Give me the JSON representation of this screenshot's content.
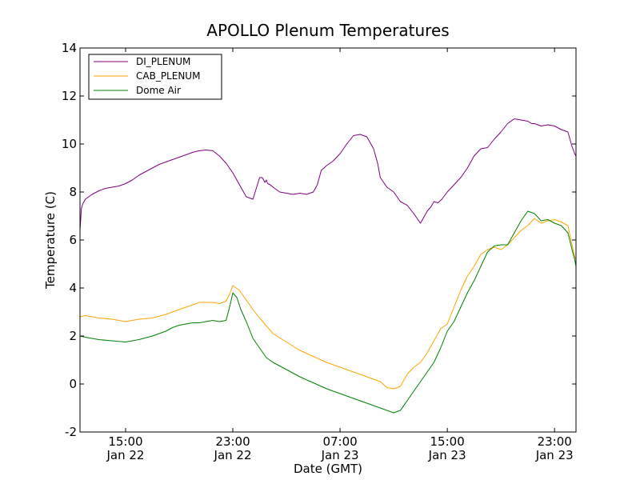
{
  "chart_data": {
    "type": "line",
    "title": "APOLLO Plenum Temperatures",
    "xlabel": "Date (GMT)",
    "ylabel": "Temperature (C)",
    "xlim": [
      11.6,
      48.6
    ],
    "ylim": [
      -2,
      14
    ],
    "grid": false,
    "legend_position": "top-left",
    "x_unit": "hours since 00:00 Jan 22 (GMT)",
    "yticks": [
      {
        "value": -2,
        "label": "-2"
      },
      {
        "value": 0,
        "label": "0"
      },
      {
        "value": 2,
        "label": "2"
      },
      {
        "value": 4,
        "label": "4"
      },
      {
        "value": 6,
        "label": "6"
      },
      {
        "value": 8,
        "label": "8"
      },
      {
        "value": 10,
        "label": "10"
      },
      {
        "value": 12,
        "label": "12"
      },
      {
        "value": 14,
        "label": "14"
      }
    ],
    "xticks": [
      {
        "value": 15,
        "time": "15:00",
        "date": "Jan 22"
      },
      {
        "value": 23,
        "time": "23:00",
        "date": "Jan 22"
      },
      {
        "value": 31,
        "time": "07:00",
        "date": "Jan 23"
      },
      {
        "value": 39,
        "time": "15:00",
        "date": "Jan 23"
      },
      {
        "value": 47,
        "time": "23:00",
        "date": "Jan 23"
      }
    ],
    "series": [
      {
        "name": "DI_PLENUM",
        "color": "#800080",
        "x": [
          11.6,
          11.7,
          11.8,
          12.0,
          12.5,
          13.0,
          13.5,
          14.0,
          14.5,
          15.0,
          15.5,
          16.0,
          16.5,
          17.0,
          17.5,
          18.0,
          18.5,
          19.0,
          19.5,
          20.0,
          20.5,
          21.0,
          21.5,
          22.0,
          22.5,
          23.0,
          23.5,
          24.0,
          24.5,
          25.0,
          25.2,
          25.4,
          25.5,
          25.6,
          25.8,
          26.0,
          26.5,
          27.0,
          27.5,
          28.0,
          28.5,
          29.0,
          29.3,
          29.6,
          30.0,
          30.5,
          31.0,
          31.5,
          32.0,
          32.5,
          33.0,
          33.5,
          33.8,
          34.0,
          34.5,
          35.0,
          35.5,
          36.0,
          36.5,
          37.0,
          37.3,
          37.5,
          37.8,
          38.0,
          38.3,
          38.6,
          39.0,
          39.5,
          40.0,
          40.5,
          41.0,
          41.5,
          42.0,
          42.5,
          43.0,
          43.5,
          44.0,
          44.5,
          45.0,
          45.3,
          45.5,
          46.0,
          46.5,
          47.0,
          47.5,
          48.0,
          48.3,
          48.5,
          48.6
        ],
        "y": [
          6.4,
          7.3,
          7.5,
          7.7,
          7.9,
          8.05,
          8.15,
          8.2,
          8.25,
          8.35,
          8.5,
          8.7,
          8.85,
          9.0,
          9.15,
          9.25,
          9.35,
          9.45,
          9.55,
          9.65,
          9.72,
          9.75,
          9.72,
          9.5,
          9.2,
          8.8,
          8.3,
          7.8,
          7.7,
          8.6,
          8.6,
          8.4,
          8.5,
          8.35,
          8.3,
          8.2,
          8.0,
          7.95,
          7.9,
          7.95,
          7.9,
          8.0,
          8.3,
          8.9,
          9.1,
          9.3,
          9.6,
          10.0,
          10.35,
          10.4,
          10.3,
          9.8,
          9.2,
          8.6,
          8.2,
          8.0,
          7.6,
          7.45,
          7.1,
          6.7,
          7.0,
          7.2,
          7.4,
          7.6,
          7.55,
          7.7,
          8.0,
          8.3,
          8.6,
          9.0,
          9.5,
          9.8,
          9.85,
          10.2,
          10.5,
          10.85,
          11.05,
          11.0,
          10.95,
          10.85,
          10.85,
          10.75,
          10.8,
          10.75,
          10.6,
          10.5,
          9.9,
          9.6,
          9.5
        ]
      },
      {
        "name": "CAB_PLENUM",
        "color": "#ffa500",
        "x": [
          11.6,
          12.0,
          12.5,
          13.0,
          14.0,
          15.0,
          16.0,
          17.0,
          18.0,
          18.5,
          19.0,
          19.5,
          20.0,
          20.5,
          21.0,
          21.5,
          22.0,
          22.5,
          22.8,
          23.0,
          23.5,
          24.0,
          24.5,
          25.0,
          26.0,
          27.0,
          28.0,
          29.0,
          30.0,
          31.0,
          32.0,
          33.0,
          34.0,
          34.3,
          34.5,
          35.0,
          35.5,
          36.0,
          36.5,
          37.0,
          37.5,
          38.0,
          38.5,
          39.0,
          39.5,
          40.0,
          40.5,
          41.0,
          41.5,
          42.0,
          42.5,
          43.0,
          43.5,
          44.0,
          44.5,
          45.0,
          45.5,
          46.0,
          46.5,
          47.0,
          47.5,
          48.0,
          48.3,
          48.5,
          48.6
        ],
        "y": [
          2.8,
          2.85,
          2.8,
          2.75,
          2.7,
          2.6,
          2.7,
          2.75,
          2.9,
          3.0,
          3.1,
          3.2,
          3.3,
          3.4,
          3.4,
          3.4,
          3.35,
          3.45,
          3.8,
          4.1,
          3.9,
          3.5,
          3.1,
          2.75,
          2.1,
          1.75,
          1.4,
          1.15,
          0.9,
          0.7,
          0.5,
          0.3,
          0.1,
          -0.05,
          -0.15,
          -0.2,
          -0.1,
          0.4,
          0.7,
          0.9,
          1.3,
          1.8,
          2.3,
          2.5,
          3.2,
          3.9,
          4.5,
          4.9,
          5.4,
          5.6,
          5.7,
          5.6,
          5.8,
          6.1,
          6.4,
          6.6,
          6.9,
          6.7,
          6.8,
          6.85,
          6.75,
          6.6,
          5.8,
          5.3,
          5.2
        ]
      },
      {
        "name": "Dome Air",
        "color": "#008000",
        "x": [
          11.6,
          12.0,
          12.5,
          13.0,
          14.0,
          15.0,
          16.0,
          17.0,
          18.0,
          18.5,
          19.0,
          19.5,
          20.0,
          20.5,
          21.0,
          21.5,
          22.0,
          22.5,
          22.8,
          23.0,
          23.3,
          23.6,
          24.0,
          24.5,
          25.0,
          25.5,
          26.0,
          27.0,
          28.0,
          29.0,
          30.0,
          31.0,
          32.0,
          33.0,
          34.0,
          34.5,
          35.0,
          35.5,
          36.0,
          36.5,
          37.0,
          37.5,
          38.0,
          38.5,
          39.0,
          39.5,
          40.0,
          40.5,
          41.0,
          41.5,
          42.0,
          42.5,
          43.0,
          43.5,
          44.0,
          44.5,
          45.0,
          45.5,
          46.0,
          46.5,
          47.0,
          47.5,
          48.0,
          48.3,
          48.5,
          48.6
        ],
        "y": [
          2.0,
          1.95,
          1.9,
          1.85,
          1.8,
          1.75,
          1.85,
          2.0,
          2.2,
          2.35,
          2.45,
          2.5,
          2.55,
          2.55,
          2.6,
          2.65,
          2.6,
          2.65,
          3.3,
          3.8,
          3.6,
          3.1,
          2.6,
          1.9,
          1.5,
          1.1,
          0.9,
          0.6,
          0.3,
          0.05,
          -0.2,
          -0.4,
          -0.6,
          -0.8,
          -1.0,
          -1.1,
          -1.2,
          -1.1,
          -0.7,
          -0.3,
          0.1,
          0.5,
          0.9,
          1.5,
          2.2,
          2.6,
          3.2,
          3.8,
          4.3,
          4.9,
          5.5,
          5.75,
          5.8,
          5.8,
          6.3,
          6.8,
          7.2,
          7.1,
          6.8,
          6.85,
          6.7,
          6.6,
          6.3,
          5.6,
          5.2,
          4.9
        ]
      }
    ]
  }
}
